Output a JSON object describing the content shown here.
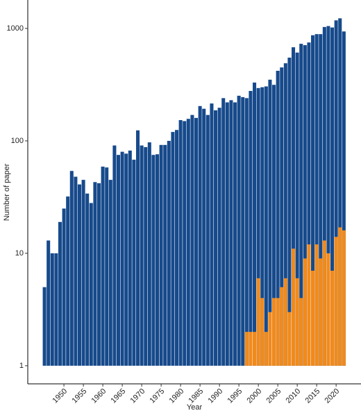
{
  "chart_data": {
    "type": "bar",
    "log_scale": true,
    "x_label": "Year",
    "y_label": "Number of paper",
    "x": [
      1945,
      1946,
      1947,
      1948,
      1949,
      1950,
      1951,
      1952,
      1953,
      1954,
      1955,
      1956,
      1957,
      1958,
      1959,
      1960,
      1961,
      1962,
      1963,
      1964,
      1965,
      1966,
      1967,
      1968,
      1969,
      1970,
      1971,
      1972,
      1973,
      1974,
      1975,
      1976,
      1977,
      1978,
      1979,
      1980,
      1981,
      1982,
      1983,
      1984,
      1985,
      1986,
      1987,
      1988,
      1989,
      1990,
      1991,
      1992,
      1993,
      1994,
      1995,
      1996,
      1997,
      1998,
      1999,
      2000,
      2001,
      2002,
      2003,
      2004,
      2005,
      2006,
      2007,
      2008,
      2009,
      2010,
      2011,
      2012,
      2013,
      2014,
      2015,
      2016,
      2017,
      2018,
      2019,
      2020,
      2021,
      2022
    ],
    "series": [
      {
        "color": "#174a8b",
        "values": [
          5,
          13,
          10,
          10,
          19,
          25,
          32,
          54,
          48,
          41,
          45,
          34,
          28,
          43,
          42,
          59,
          58,
          45,
          91,
          75,
          80,
          77,
          82,
          68,
          124,
          91,
          88,
          97,
          75,
          76,
          92,
          92,
          100,
          120,
          125,
          153,
          150,
          157,
          170,
          160,
          204,
          193,
          170,
          215,
          187,
          197,
          240,
          220,
          230,
          220,
          252,
          245,
          240,
          278,
          330,
          295,
          300,
          305,
          350,
          315,
          420,
          450,
          490,
          550,
          680,
          610,
          730,
          710,
          750,
          870,
          890,
          890,
          1030,
          1050,
          1020,
          1180,
          1230,
          940
        ]
      },
      {
        "color": "#f28a1a",
        "values": [
          null,
          null,
          null,
          null,
          null,
          null,
          null,
          null,
          null,
          null,
          null,
          null,
          null,
          null,
          null,
          null,
          null,
          null,
          null,
          null,
          null,
          null,
          null,
          null,
          null,
          null,
          null,
          null,
          null,
          null,
          null,
          null,
          null,
          null,
          null,
          null,
          null,
          null,
          null,
          null,
          null,
          null,
          null,
          null,
          null,
          null,
          null,
          null,
          null,
          null,
          null,
          null,
          2,
          2,
          2,
          6,
          4,
          2,
          3,
          4,
          4,
          5,
          6,
          3,
          11,
          6,
          4,
          9,
          12,
          7,
          12,
          9,
          13,
          10,
          7,
          14,
          17,
          16
        ]
      }
    ],
    "xlim": [
      1940.7,
      2026.4
    ],
    "xticks": [
      1950,
      1955,
      1960,
      1965,
      1970,
      1975,
      1980,
      1985,
      1990,
      1995,
      2000,
      2005,
      2010,
      2015,
      2020
    ],
    "ylim": [
      0.69,
      1790
    ],
    "yticks": [
      1,
      10,
      100,
      1000
    ]
  }
}
